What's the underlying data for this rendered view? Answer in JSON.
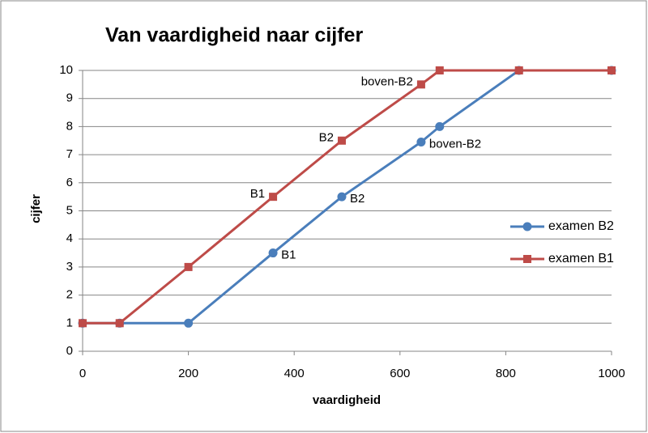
{
  "chart_data": {
    "type": "line",
    "title": "Van vaardigheid naar cijfer",
    "x_label": "vaardigheid",
    "y_label": "cijfer",
    "x": [
      0,
      70,
      200,
      360,
      490,
      640,
      675,
      825,
      1000
    ],
    "series": [
      {
        "name": "examen B2",
        "color": "#4a7ebb",
        "marker": "circle",
        "values": [
          1,
          1,
          1,
          3.5,
          5.5,
          7.45,
          8,
          10,
          10
        ],
        "point_labels": [
          null,
          null,
          null,
          "B1",
          "B2",
          "boven-B2",
          null,
          null,
          null
        ]
      },
      {
        "name": "examen B1",
        "color": "#be4b48",
        "marker": "square",
        "values": [
          1,
          1,
          3,
          5.5,
          7.5,
          9.5,
          10,
          10,
          10
        ],
        "point_labels": [
          null,
          null,
          null,
          "B1",
          "B2",
          "boven-B2",
          null,
          null,
          null
        ]
      }
    ],
    "xlim": [
      0,
      1000
    ],
    "xticks": [
      0,
      200,
      400,
      600,
      800,
      1000
    ],
    "ylim": [
      0,
      10
    ],
    "yticks": [
      0,
      1,
      2,
      3,
      4,
      5,
      6,
      7,
      8,
      9,
      10
    ],
    "grid": true,
    "legend": "right"
  }
}
